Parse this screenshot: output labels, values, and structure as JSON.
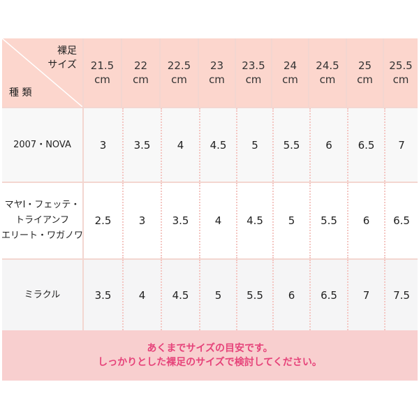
{
  "header": {
    "corner_top": [
      "裸足",
      "サイズ"
    ],
    "corner_bottom": "種 類",
    "sizes": [
      {
        "num": "21.5",
        "unit": "cm"
      },
      {
        "num": "22",
        "unit": "cm"
      },
      {
        "num": "22.5",
        "unit": "cm"
      },
      {
        "num": "23",
        "unit": "cm"
      },
      {
        "num": "23.5",
        "unit": "cm"
      },
      {
        "num": "24",
        "unit": "cm"
      },
      {
        "num": "24.5",
        "unit": "cm"
      },
      {
        "num": "25",
        "unit": "cm"
      },
      {
        "num": "25.5",
        "unit": "cm"
      }
    ]
  },
  "rows": [
    {
      "label": [
        "2007・NOVA"
      ],
      "values": [
        "3",
        "3.5",
        "4",
        "4.5",
        "5",
        "5.5",
        "6",
        "6.5",
        "7"
      ]
    },
    {
      "label": [
        "マヤI・フェッテ・",
        "トライアンフ",
        "エリート・ワガノワ"
      ],
      "values": [
        "2.5",
        "3",
        "3.5",
        "4",
        "4.5",
        "5",
        "5.5",
        "6",
        "6.5"
      ]
    },
    {
      "label": [
        "ミラクル"
      ],
      "values": [
        "3.5",
        "4",
        "4.5",
        "5",
        "5.5",
        "6",
        "6.5",
        "7",
        "7.5"
      ]
    }
  ],
  "footer": {
    "lines": [
      "あくまでサイズの目安です。",
      "しっかりとした裸足のサイズで検討してください。"
    ]
  },
  "colors": {
    "header_bg": "#fcd6cd",
    "footer_bg": "#f8cfcf",
    "footer_text": "#e6437a",
    "border": "#f3d6d0"
  }
}
